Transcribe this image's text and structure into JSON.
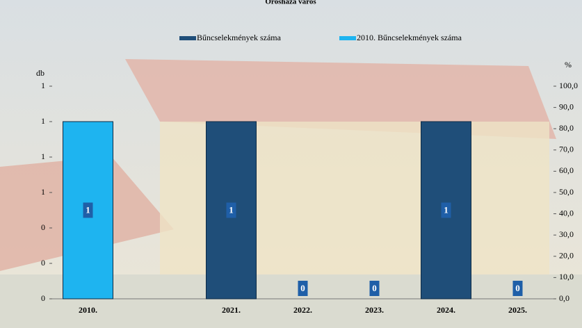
{
  "chart_data": {
    "type": "bar",
    "title": "Orosháza város",
    "y_label": "db",
    "y2_label": "%",
    "categories": [
      "2010.",
      null,
      "2021.",
      "2022.",
      "2023.",
      "2024.",
      "2025."
    ],
    "series": [
      {
        "name": "Bűncselekmények száma",
        "color": "#1f4e79",
        "values": [
          null,
          null,
          1,
          0,
          0,
          1,
          0
        ]
      },
      {
        "name": "2010. Bűncselekmények száma",
        "color": "#1eb4f0",
        "values": [
          1,
          null,
          null,
          null,
          null,
          null,
          null
        ]
      }
    ],
    "ylim": [
      0,
      1.2
    ],
    "yticks": [
      {
        "value": 0,
        "label": "0"
      },
      {
        "value": 0.2,
        "label": "0"
      },
      {
        "value": 0.4,
        "label": "0"
      },
      {
        "value": 0.6,
        "label": "1"
      },
      {
        "value": 0.8,
        "label": "1"
      },
      {
        "value": 1.0,
        "label": "1"
      },
      {
        "value": 1.2,
        "label": "1"
      }
    ],
    "y2lim": [
      0,
      100
    ],
    "y2ticks": [
      {
        "value": 0,
        "label": "0,0"
      },
      {
        "value": 10,
        "label": "10,0"
      },
      {
        "value": 20,
        "label": "20,0"
      },
      {
        "value": 30,
        "label": "30,0"
      },
      {
        "value": 40,
        "label": "40,0"
      },
      {
        "value": 50,
        "label": "50,0"
      },
      {
        "value": 60,
        "label": "60,0"
      },
      {
        "value": 70,
        "label": "70,0"
      },
      {
        "value": 80,
        "label": "80,0"
      },
      {
        "value": 90,
        "label": "90,0"
      },
      {
        "value": 100,
        "label": "100,0"
      }
    ]
  }
}
